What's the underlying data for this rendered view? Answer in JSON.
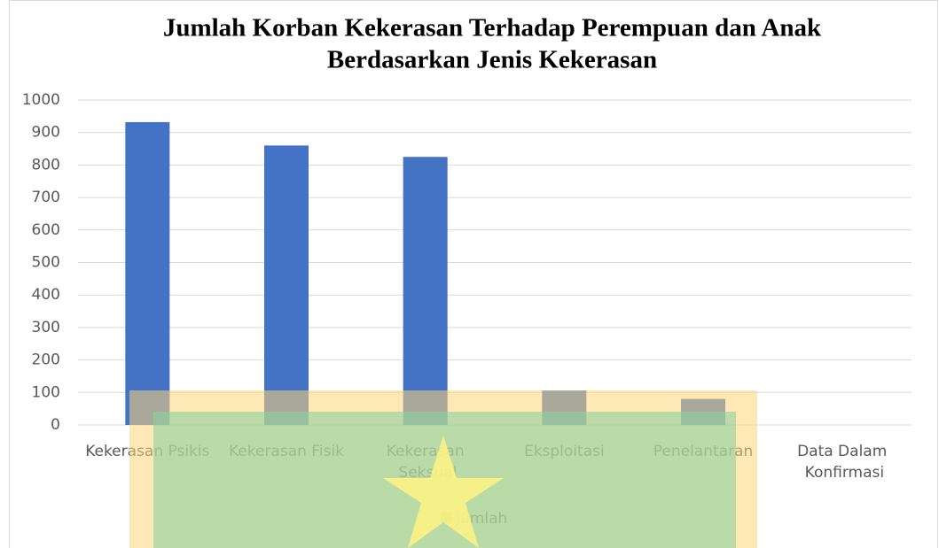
{
  "chart_data": {
    "type": "bar",
    "title": [
      "Jumlah Korban Kekerasan Terhadap Perempuan dan Anak",
      "Berdasarkan Jenis Kekerasan"
    ],
    "categories": [
      "Kekerasan Psikis",
      "Kekerasan Fisik",
      "Kekerasan Seksual",
      "Eksploitasi",
      "Penelantaran",
      "Data Dalam Konfirmasi"
    ],
    "series": [
      {
        "name": "Jumlah",
        "color": "#4472c4",
        "values": [
          932,
          860,
          825,
          106,
          80,
          0
        ]
      }
    ],
    "ylim": [
      0,
      1000
    ],
    "yticks": [
      0,
      100,
      200,
      300,
      400,
      500,
      600,
      700,
      800,
      900,
      1000
    ],
    "grid": true,
    "legend": "bottom"
  }
}
